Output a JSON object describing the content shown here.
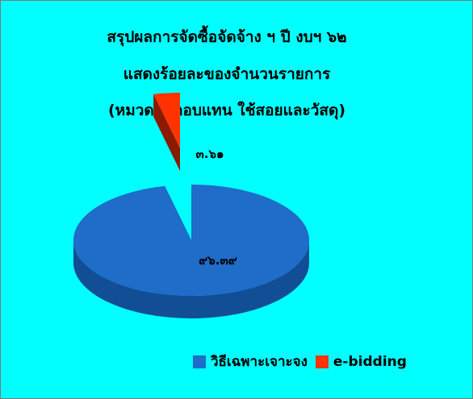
{
  "chart_data": {
    "type": "pie",
    "style": "3d-exploded",
    "title_lines": [
      "สรุปผลการจัดซื้อจัดจ้าง ฯ ปี งบฯ ๖๒",
      "แสดงร้อยละของจำนวนรายการ",
      "(หมวดค่าตอบแทน ใช้สอยและวัสดุ)"
    ],
    "categories": [
      "วิธีเฉพาะเจาะจง",
      "e-bidding"
    ],
    "values": [
      96.39,
      3.61
    ],
    "data_labels": [
      "๙๖.๓๙",
      "๓.๖๑"
    ],
    "colors": [
      "#1f6cc9",
      "#ff3300"
    ],
    "side_colors": [
      "#124e95",
      "#8a1a00"
    ],
    "legend_position": "bottom-right"
  }
}
